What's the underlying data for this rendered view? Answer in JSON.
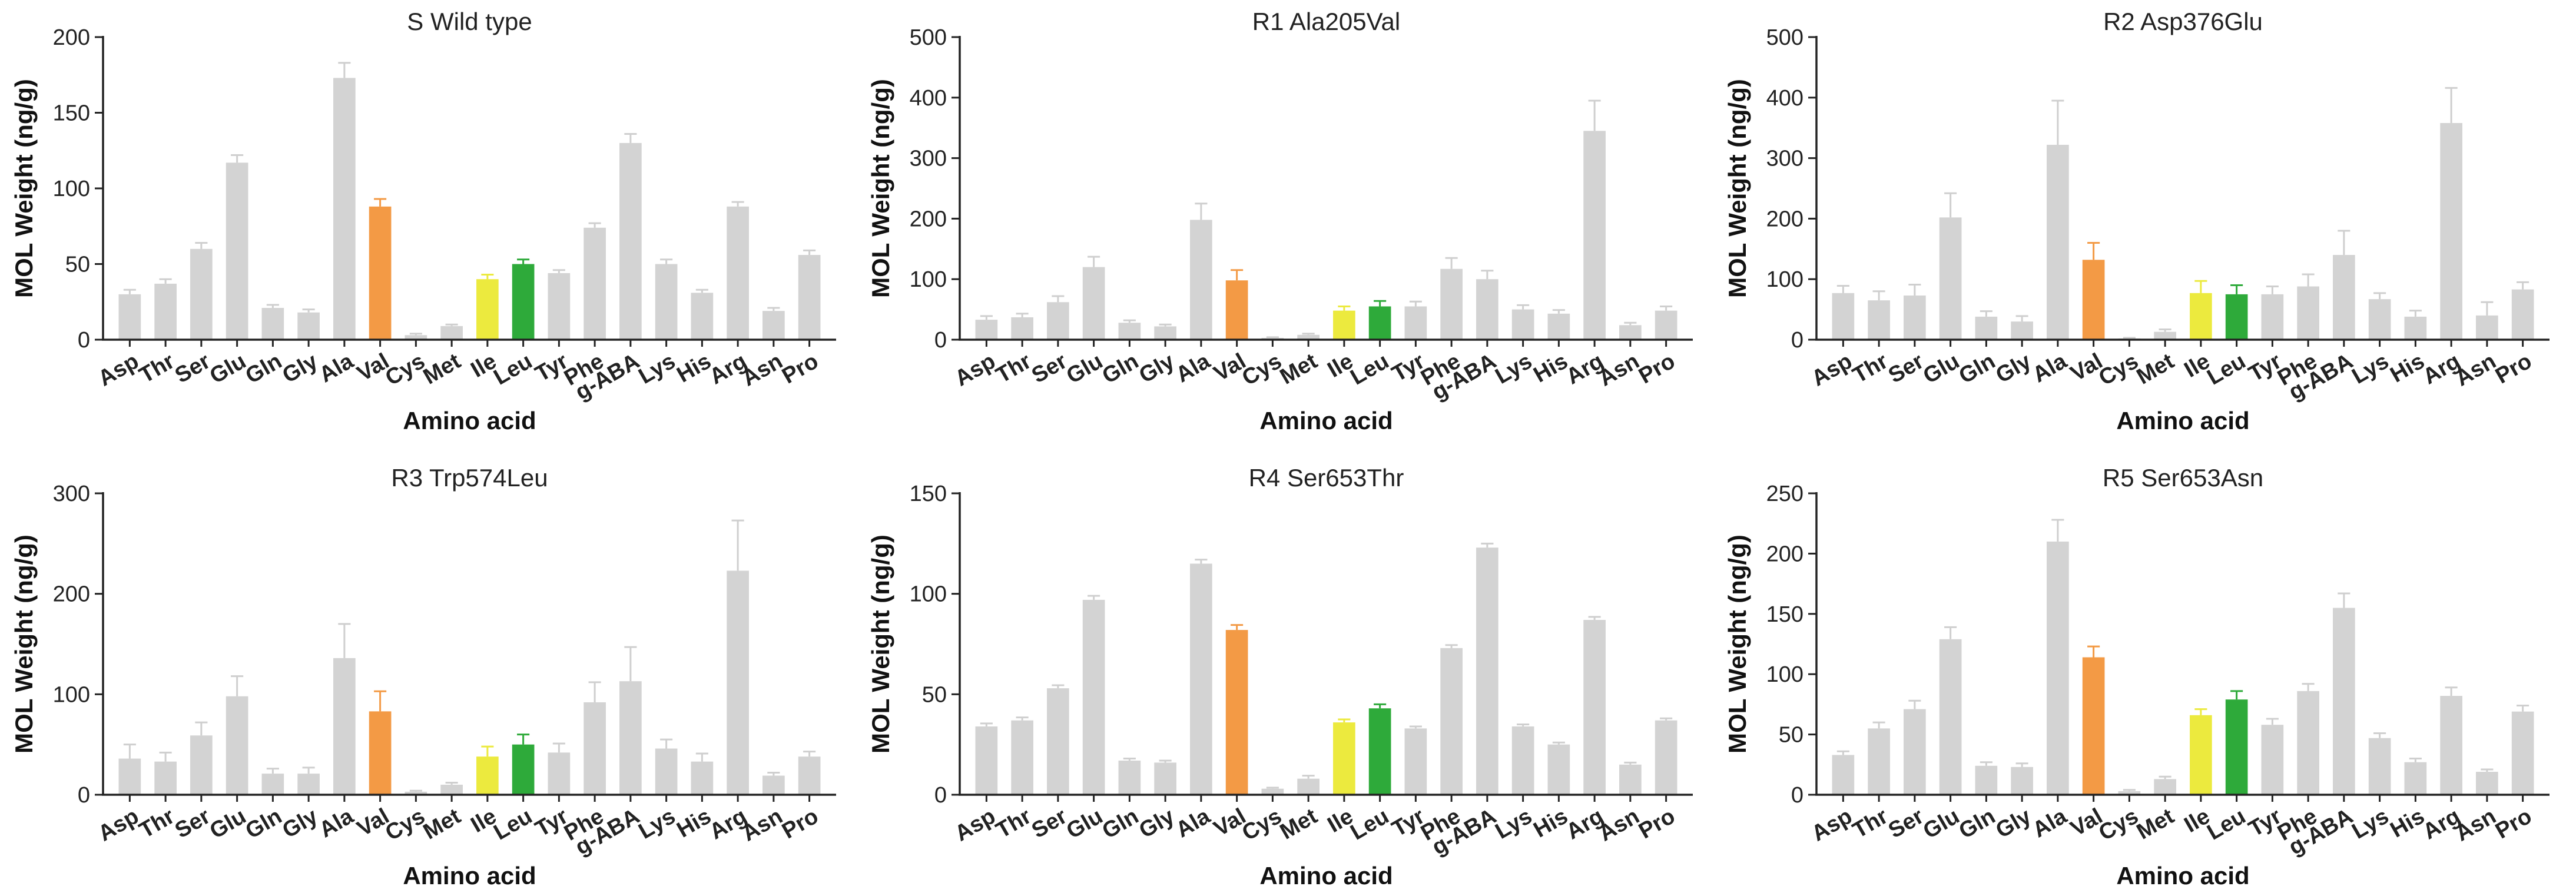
{
  "colors": {
    "default": "#d3d3d3",
    "Val": "#f39a45",
    "Ile": "#ecea3e",
    "Leu": "#2eaa3a",
    "axis": "#222222",
    "error_bar": "#cfcfcf"
  },
  "chart_data": [
    {
      "type": "bar",
      "title": "S Wild type",
      "xlabel": "Amino acid",
      "ylabel": "MOL Weight (ng/g)",
      "ylim": [
        0,
        200
      ],
      "yticks": [
        0,
        50,
        100,
        150,
        200
      ],
      "categories": [
        "Asp",
        "Thr",
        "Ser",
        "Glu",
        "Gln",
        "Gly",
        "Ala",
        "Val",
        "Cys",
        "Met",
        "Ile",
        "Leu",
        "Tyr",
        "Phe",
        "g-ABA",
        "Lys",
        "His",
        "Arg",
        "Asn",
        "Pro"
      ],
      "values": [
        30,
        37,
        60,
        117,
        21,
        18,
        173,
        88,
        3,
        9,
        40,
        50,
        44,
        74,
        130,
        50,
        31,
        88,
        19,
        56
      ],
      "errors": [
        3,
        3,
        4,
        5,
        2,
        2,
        10,
        5,
        1,
        1,
        3,
        3,
        2,
        3,
        6,
        3,
        2,
        3,
        2,
        3
      ]
    },
    {
      "type": "bar",
      "title": "R1 Ala205Val",
      "xlabel": "Amino acid",
      "ylabel": "MOL Weight (ng/g)",
      "ylim": [
        0,
        500
      ],
      "yticks": [
        0,
        100,
        200,
        300,
        400,
        500
      ],
      "categories": [
        "Asp",
        "Thr",
        "Ser",
        "Glu",
        "Gln",
        "Gly",
        "Ala",
        "Val",
        "Cys",
        "Met",
        "Ile",
        "Leu",
        "Tyr",
        "Phe",
        "g-ABA",
        "Lys",
        "His",
        "Arg",
        "Asn",
        "Pro"
      ],
      "values": [
        33,
        37,
        62,
        120,
        28,
        22,
        198,
        98,
        3,
        8,
        48,
        55,
        55,
        117,
        100,
        50,
        43,
        345,
        24,
        48
      ],
      "errors": [
        6,
        6,
        10,
        17,
        4,
        3,
        27,
        17,
        1,
        2,
        7,
        9,
        8,
        18,
        14,
        7,
        6,
        50,
        4,
        7
      ]
    },
    {
      "type": "bar",
      "title": "R2 Asp376Glu",
      "xlabel": "Amino acid",
      "ylabel": "MOL Weight (ng/g)",
      "ylim": [
        0,
        500
      ],
      "yticks": [
        0,
        100,
        200,
        300,
        400,
        500
      ],
      "categories": [
        "Asp",
        "Thr",
        "Ser",
        "Glu",
        "Gln",
        "Gly",
        "Ala",
        "Val",
        "Cys",
        "Met",
        "Ile",
        "Leu",
        "Tyr",
        "Phe",
        "g-ABA",
        "Lys",
        "His",
        "Arg",
        "Asn",
        "Pro"
      ],
      "values": [
        77,
        65,
        73,
        202,
        38,
        30,
        322,
        132,
        2,
        13,
        77,
        75,
        75,
        88,
        140,
        67,
        38,
        358,
        40,
        83
      ],
      "errors": [
        12,
        15,
        18,
        40,
        9,
        9,
        73,
        28,
        1,
        4,
        20,
        15,
        13,
        20,
        40,
        10,
        10,
        58,
        22,
        12
      ]
    },
    {
      "type": "bar",
      "title": "R3 Trp574Leu",
      "xlabel": "Amino acid",
      "ylabel": "MOL Weight (ng/g)",
      "ylim": [
        0,
        300
      ],
      "yticks": [
        0,
        100,
        200,
        300
      ],
      "categories": [
        "Asp",
        "Thr",
        "Ser",
        "Glu",
        "Gln",
        "Gly",
        "Ala",
        "Val",
        "Cys",
        "Met",
        "Ile",
        "Leu",
        "Tyr",
        "Phe",
        "g-ABA",
        "Lys",
        "His",
        "Arg",
        "Asn",
        "Pro"
      ],
      "values": [
        36,
        33,
        59,
        98,
        21,
        21,
        136,
        83,
        3,
        10,
        38,
        50,
        42,
        92,
        113,
        46,
        33,
        223,
        19,
        38
      ],
      "errors": [
        14,
        9,
        13,
        20,
        5,
        6,
        34,
        20,
        1,
        2,
        10,
        10,
        9,
        20,
        34,
        9,
        8,
        50,
        3,
        5
      ]
    },
    {
      "type": "bar",
      "title": "R4 Ser653Thr",
      "xlabel": "Amino acid",
      "ylabel": "MOL Weight (ng/g)",
      "ylim": [
        0,
        150
      ],
      "yticks": [
        0,
        50,
        100,
        150
      ],
      "categories": [
        "Asp",
        "Thr",
        "Ser",
        "Glu",
        "Gln",
        "Gly",
        "Ala",
        "Val",
        "Cys",
        "Met",
        "Ile",
        "Leu",
        "Tyr",
        "Phe",
        "g-ABA",
        "Lys",
        "His",
        "Arg",
        "Asn",
        "Pro"
      ],
      "values": [
        34,
        37,
        53,
        97,
        17,
        16,
        115,
        82,
        3,
        8,
        36,
        43,
        33,
        73,
        123,
        34,
        25,
        87,
        15,
        37
      ],
      "errors": [
        1.5,
        1.5,
        1.5,
        2,
        1,
        1,
        2,
        2.5,
        0.5,
        1.5,
        1.5,
        2,
        1,
        1.5,
        2,
        1,
        1,
        1.5,
        1,
        1
      ]
    },
    {
      "type": "bar",
      "title": "R5 Ser653Asn",
      "xlabel": "Amino acid",
      "ylabel": "MOL Weight (ng/g)",
      "ylim": [
        0,
        250
      ],
      "yticks": [
        0,
        50,
        100,
        150,
        200,
        250
      ],
      "categories": [
        "Asp",
        "Thr",
        "Ser",
        "Glu",
        "Gln",
        "Gly",
        "Ala",
        "Val",
        "Cys",
        "Met",
        "Ile",
        "Leu",
        "Tyr",
        "Phe",
        "g-ABA",
        "Lys",
        "His",
        "Arg",
        "Asn",
        "Pro"
      ],
      "values": [
        33,
        55,
        71,
        129,
        24,
        23,
        210,
        114,
        3,
        13,
        66,
        79,
        58,
        86,
        155,
        47,
        27,
        82,
        19,
        69
      ],
      "errors": [
        3,
        5,
        7,
        10,
        3,
        3,
        18,
        9,
        1,
        2,
        5,
        7,
        5,
        6,
        12,
        4,
        3,
        7,
        2,
        5
      ]
    }
  ]
}
